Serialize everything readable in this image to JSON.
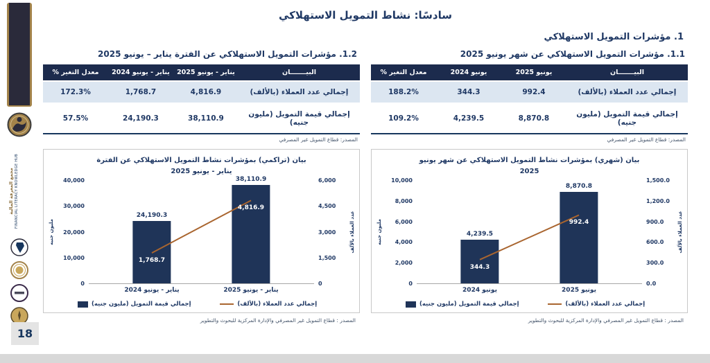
{
  "page": {
    "title": "سادسًا: نشاط التمويل الاستهلاكي",
    "section_heading": "1. مؤشرات التمويل الاستهلاكي",
    "page_number": "18",
    "colors": {
      "navy": "#1F3864",
      "table_header_bg": "#1C2B4D",
      "row_alt_bg": "#DCE6F1",
      "bar": "#1F3458",
      "line": "#A9652F",
      "gold": "#A3834A",
      "footer_gray": "#D8D8D8"
    }
  },
  "sidebar": {
    "vertical_text_ar": "مجمع المعرفة المالية",
    "vertical_text_en": "FINANCIAL LITERACY KNOWLEDGE HUB"
  },
  "monthly": {
    "heading": "1.1. مؤشرات التمويل الاستهلاكي عن شهر يونيو 2025",
    "table": {
      "headers": {
        "item": "البيـــــــان",
        "current": "يونيو 2025",
        "previous": "يونيو 2024",
        "change": "معدل التغير %"
      },
      "rows": [
        {
          "label": "إجمالي عدد العملاء (بالألف)",
          "current": "992.4",
          "previous": "344.3",
          "change": "188.2%"
        },
        {
          "label": "إجمالي قيمة التمويل (مليون جنيه)",
          "current": "8,870.8",
          "previous": "4,239.5",
          "change": "109.2%"
        }
      ]
    },
    "table_source": "المصدر: قطاع التمويل غير المصرفي",
    "chart_source": "المصدر : قطاع التمويل غير المصرفي والإدارة المركزية للبحوث والتطوير"
  },
  "cumulative": {
    "heading": "1.2. مؤشرات التمويل الاستهلاكي عن الفترة يناير – يونيو 2025",
    "table": {
      "headers": {
        "item": "البيـــــــان",
        "current": "يناير - يونيو 2025",
        "previous": "يناير - يونيو 2024",
        "change": "معدل التغير %"
      },
      "rows": [
        {
          "label": "إجمالي عدد العملاء (بالألف)",
          "current": "4,816.9",
          "previous": "1,768.7",
          "change": "172.3%"
        },
        {
          "label": "إجمالي قيمة التمويل (مليون جنيه)",
          "current": "38,110.9",
          "previous": "24,190.3",
          "change": "57.5%"
        }
      ]
    },
    "table_source": "المصدر: قطاع التمويل غير المصرفي",
    "chart_source": "المصدر : قطاع التمويل غير المصرفي والإدارة المركزية للبحوث والتطوير"
  },
  "chart_data": [
    {
      "id": "monthly-june-2025",
      "type": "bar",
      "title": "بيان (شهري) بمؤشرات نشاط التمويل الاستهلاكي عن شهر يونيو 2025",
      "categories": [
        "يونيو 2024",
        "يونيو 2025"
      ],
      "series": [
        {
          "name": "إجمالي قيمة التمويل (مليون جنيه)",
          "kind": "bar",
          "axis": "left",
          "values": [
            4239.5,
            8870.8
          ],
          "labels": [
            "4,239.5",
            "8,870.8"
          ],
          "color": "#1F3458"
        },
        {
          "name": "إجمالي عدد العملاء (بالألف)",
          "kind": "line",
          "axis": "right",
          "values": [
            344.3,
            992.4
          ],
          "labels": [
            "344.3",
            "992.4"
          ],
          "color": "#A9652F"
        }
      ],
      "left_axis": {
        "label": "مليون جنيه",
        "min": 0,
        "max": 10000,
        "ticks": [
          "10,000",
          "8,000",
          "6,000",
          "4,000",
          "2,000",
          "0"
        ]
      },
      "right_axis": {
        "label": "عدد العملاء بالألف",
        "min": 0,
        "max": 1500,
        "ticks": [
          "1,500.0",
          "1,200.0",
          "900.0",
          "600.0",
          "300.0",
          "0.0"
        ]
      },
      "grid": false,
      "legend_position": "bottom"
    },
    {
      "id": "cumulative-jan-june-2025",
      "type": "bar",
      "title": "بيان (تراكمي) بمؤشرات نشاط التمويل الاستهلاكي عن الفترة يناير - يونيو 2025",
      "categories": [
        "يناير - يونيو 2024",
        "يناير - يونيو 2025"
      ],
      "series": [
        {
          "name": "إجمالي قيمة التمويل (مليون جنيه)",
          "kind": "bar",
          "axis": "left",
          "values": [
            24190.3,
            38110.9
          ],
          "labels": [
            "24,190.3",
            "38,110.9"
          ],
          "color": "#1F3458"
        },
        {
          "name": "إجمالي عدد العملاء (بالألف)",
          "kind": "line",
          "axis": "right",
          "values": [
            1768.7,
            4816.9
          ],
          "labels": [
            "1,768.7",
            "4,816.9"
          ],
          "color": "#A9652F"
        }
      ],
      "left_axis": {
        "label": "مليون جنيه",
        "min": 0,
        "max": 40000,
        "ticks": [
          "40,000",
          "30,000",
          "20,000",
          "10,000",
          "0"
        ]
      },
      "right_axis": {
        "label": "عدد العملاء بالألف",
        "min": 0,
        "max": 6000,
        "ticks": [
          "6,000",
          "4,500",
          "3,000",
          "1,500",
          "0"
        ]
      },
      "grid": false,
      "legend_position": "bottom"
    }
  ]
}
